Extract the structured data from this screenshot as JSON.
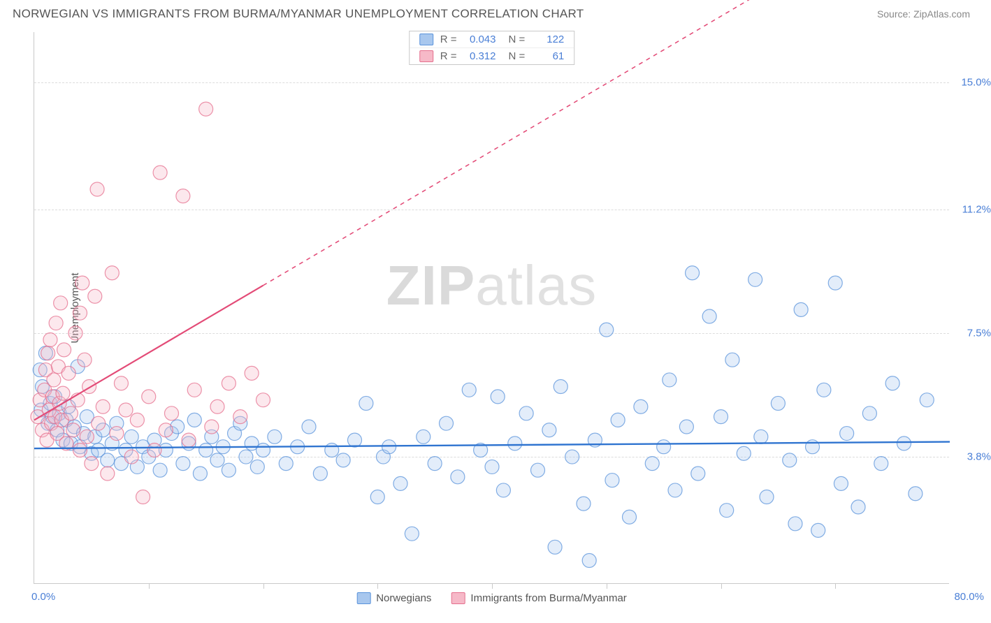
{
  "header": {
    "title": "NORWEGIAN VS IMMIGRANTS FROM BURMA/MYANMAR UNEMPLOYMENT CORRELATION CHART",
    "source": "Source: ZipAtlas.com"
  },
  "watermark": {
    "bold": "ZIP",
    "rest": "atlas"
  },
  "chart": {
    "type": "scatter",
    "ylabel": "Unemployment",
    "xlim": [
      0,
      80
    ],
    "ylim": [
      0,
      16.5
    ],
    "xtick_step": 10,
    "ytick_values": [
      3.8,
      7.5,
      11.2,
      15.0
    ],
    "ytick_labels": [
      "3.8%",
      "7.5%",
      "11.2%",
      "15.0%"
    ],
    "xlabel_min": "0.0%",
    "xlabel_max": "80.0%",
    "grid_color": "#dcdcdc",
    "axis_color": "#c9c9c9",
    "background_color": "#ffffff",
    "marker_radius": 10,
    "marker_opacity": 0.32,
    "marker_stroke_opacity": 0.75,
    "series": [
      {
        "name": "Norwegians",
        "color_fill": "#a8c7ee",
        "color_stroke": "#5a93db",
        "R": "0.043",
        "N": "122",
        "trend": {
          "y_at_x0": 4.05,
          "y_at_x80": 4.25,
          "solid_until_x": 80,
          "line_color": "#2f74d0",
          "line_width": 2.4
        },
        "points": [
          [
            0.5,
            6.4
          ],
          [
            0.6,
            5.2
          ],
          [
            0.7,
            5.9
          ],
          [
            1.0,
            6.9
          ],
          [
            1.2,
            4.8
          ],
          [
            1.4,
            5.4
          ],
          [
            1.6,
            5.0
          ],
          [
            1.8,
            5.6
          ],
          [
            2.0,
            4.6
          ],
          [
            2.2,
            5.1
          ],
          [
            2.5,
            4.3
          ],
          [
            2.8,
            4.9
          ],
          [
            3.0,
            5.3
          ],
          [
            3.2,
            4.2
          ],
          [
            3.5,
            4.7
          ],
          [
            3.8,
            6.5
          ],
          [
            4.0,
            4.1
          ],
          [
            4.3,
            4.5
          ],
          [
            4.6,
            5.0
          ],
          [
            5.0,
            3.9
          ],
          [
            5.3,
            4.4
          ],
          [
            5.6,
            4.0
          ],
          [
            6.0,
            4.6
          ],
          [
            6.4,
            3.7
          ],
          [
            6.8,
            4.2
          ],
          [
            7.2,
            4.8
          ],
          [
            7.6,
            3.6
          ],
          [
            8.0,
            4.0
          ],
          [
            8.5,
            4.4
          ],
          [
            9.0,
            3.5
          ],
          [
            9.5,
            4.1
          ],
          [
            10.0,
            3.8
          ],
          [
            10.5,
            4.3
          ],
          [
            11.0,
            3.4
          ],
          [
            11.5,
            4.0
          ],
          [
            12.0,
            4.5
          ],
          [
            12.5,
            4.7
          ],
          [
            13.0,
            3.6
          ],
          [
            13.5,
            4.2
          ],
          [
            14.0,
            4.9
          ],
          [
            14.5,
            3.3
          ],
          [
            15.0,
            4.0
          ],
          [
            15.5,
            4.4
          ],
          [
            16.0,
            3.7
          ],
          [
            16.5,
            4.1
          ],
          [
            17.0,
            3.4
          ],
          [
            17.5,
            4.5
          ],
          [
            18.0,
            4.8
          ],
          [
            18.5,
            3.8
          ],
          [
            19.0,
            4.2
          ],
          [
            19.5,
            3.5
          ],
          [
            20.0,
            4.0
          ],
          [
            21.0,
            4.4
          ],
          [
            22.0,
            3.6
          ],
          [
            23.0,
            4.1
          ],
          [
            24.0,
            4.7
          ],
          [
            25.0,
            3.3
          ],
          [
            26.0,
            4.0
          ],
          [
            27.0,
            3.7
          ],
          [
            28.0,
            4.3
          ],
          [
            29.0,
            5.4
          ],
          [
            30.0,
            2.6
          ],
          [
            30.5,
            3.8
          ],
          [
            31.0,
            4.1
          ],
          [
            32.0,
            3.0
          ],
          [
            33.0,
            1.5
          ],
          [
            34.0,
            4.4
          ],
          [
            35.0,
            3.6
          ],
          [
            36.0,
            4.8
          ],
          [
            37.0,
            3.2
          ],
          [
            38.0,
            5.8
          ],
          [
            39.0,
            4.0
          ],
          [
            40.0,
            3.5
          ],
          [
            40.5,
            5.6
          ],
          [
            41.0,
            2.8
          ],
          [
            42.0,
            4.2
          ],
          [
            43.0,
            5.1
          ],
          [
            44.0,
            3.4
          ],
          [
            45.0,
            4.6
          ],
          [
            45.5,
            1.1
          ],
          [
            46.0,
            5.9
          ],
          [
            47.0,
            3.8
          ],
          [
            48.0,
            2.4
          ],
          [
            49.0,
            4.3
          ],
          [
            50.0,
            7.6
          ],
          [
            50.5,
            3.1
          ],
          [
            51.0,
            4.9
          ],
          [
            52.0,
            2.0
          ],
          [
            53.0,
            5.3
          ],
          [
            54.0,
            3.6
          ],
          [
            55.0,
            4.1
          ],
          [
            55.5,
            6.1
          ],
          [
            56.0,
            2.8
          ],
          [
            57.0,
            4.7
          ],
          [
            57.5,
            9.3
          ],
          [
            58.0,
            3.3
          ],
          [
            59.0,
            8.0
          ],
          [
            60.0,
            5.0
          ],
          [
            60.5,
            2.2
          ],
          [
            61.0,
            6.7
          ],
          [
            62.0,
            3.9
          ],
          [
            63.0,
            9.1
          ],
          [
            63.5,
            4.4
          ],
          [
            64.0,
            2.6
          ],
          [
            65.0,
            5.4
          ],
          [
            66.0,
            3.7
          ],
          [
            67.0,
            8.2
          ],
          [
            68.0,
            4.1
          ],
          [
            68.5,
            1.6
          ],
          [
            69.0,
            5.8
          ],
          [
            70.0,
            9.0
          ],
          [
            70.5,
            3.0
          ],
          [
            71.0,
            4.5
          ],
          [
            72.0,
            2.3
          ],
          [
            73.0,
            5.1
          ],
          [
            74.0,
            3.6
          ],
          [
            75.0,
            6.0
          ],
          [
            76.0,
            4.2
          ],
          [
            77.0,
            2.7
          ],
          [
            78.0,
            5.5
          ],
          [
            66.5,
            1.8
          ],
          [
            48.5,
            0.7
          ]
        ]
      },
      {
        "name": "Immigrants from Burma/Myanmar",
        "color_fill": "#f6b9c8",
        "color_stroke": "#e56f8d",
        "R": "0.312",
        "N": "61",
        "trend": {
          "y_at_x0": 4.9,
          "y_at_x80": 21.0,
          "solid_until_x": 20,
          "line_color": "#e34b77",
          "line_width": 2.2
        },
        "points": [
          [
            0.3,
            5.0
          ],
          [
            0.5,
            5.5
          ],
          [
            0.7,
            4.6
          ],
          [
            0.9,
            5.8
          ],
          [
            1.0,
            6.4
          ],
          [
            1.1,
            4.3
          ],
          [
            1.2,
            6.9
          ],
          [
            1.3,
            5.2
          ],
          [
            1.4,
            7.3
          ],
          [
            1.5,
            4.8
          ],
          [
            1.6,
            5.6
          ],
          [
            1.7,
            6.1
          ],
          [
            1.8,
            5.0
          ],
          [
            1.9,
            7.8
          ],
          [
            2.0,
            4.5
          ],
          [
            2.1,
            6.5
          ],
          [
            2.2,
            5.4
          ],
          [
            2.3,
            8.4
          ],
          [
            2.4,
            4.9
          ],
          [
            2.5,
            5.7
          ],
          [
            2.6,
            7.0
          ],
          [
            2.8,
            4.2
          ],
          [
            3.0,
            6.3
          ],
          [
            3.2,
            5.1
          ],
          [
            3.4,
            4.6
          ],
          [
            3.6,
            7.5
          ],
          [
            3.8,
            5.5
          ],
          [
            4.0,
            4.0
          ],
          [
            4.2,
            9.0
          ],
          [
            4.4,
            6.7
          ],
          [
            4.6,
            4.4
          ],
          [
            4.8,
            5.9
          ],
          [
            5.0,
            3.6
          ],
          [
            5.3,
            8.6
          ],
          [
            5.6,
            4.8
          ],
          [
            6.0,
            5.3
          ],
          [
            6.4,
            3.3
          ],
          [
            6.8,
            9.3
          ],
          [
            7.2,
            4.5
          ],
          [
            7.6,
            6.0
          ],
          [
            8.0,
            5.2
          ],
          [
            8.5,
            3.8
          ],
          [
            9.0,
            4.9
          ],
          [
            9.5,
            2.6
          ],
          [
            10.0,
            5.6
          ],
          [
            10.5,
            4.0
          ],
          [
            11.0,
            12.3
          ],
          [
            11.5,
            4.6
          ],
          [
            12.0,
            5.1
          ],
          [
            13.0,
            11.6
          ],
          [
            13.5,
            4.3
          ],
          [
            14.0,
            5.8
          ],
          [
            15.0,
            14.2
          ],
          [
            15.5,
            4.7
          ],
          [
            16.0,
            5.3
          ],
          [
            17.0,
            6.0
          ],
          [
            18.0,
            5.0
          ],
          [
            19.0,
            6.3
          ],
          [
            20.0,
            5.5
          ],
          [
            5.5,
            11.8
          ],
          [
            4.0,
            8.1
          ]
        ]
      }
    ]
  },
  "legend_top": [
    {
      "series_idx": 0,
      "R_label": "R =",
      "N_label": "N ="
    },
    {
      "series_idx": 1,
      "R_label": "R =",
      "N_label": "N ="
    }
  ],
  "legend_bottom": [
    {
      "series_idx": 0
    },
    {
      "series_idx": 1
    }
  ]
}
